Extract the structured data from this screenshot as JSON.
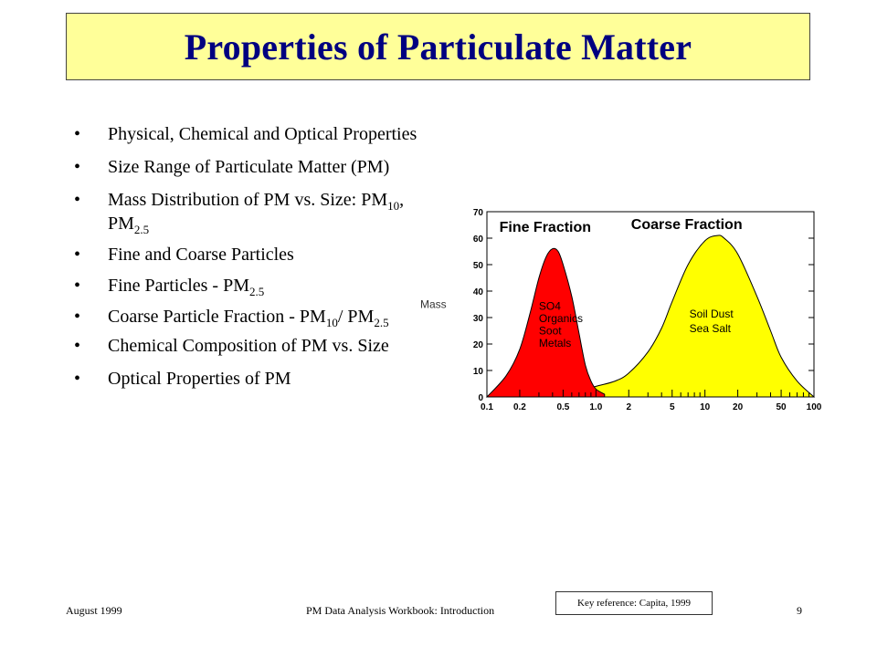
{
  "title": "Properties of Particulate Matter",
  "colors": {
    "title_bg": "#ffff99",
    "title_text": "#000080",
    "fine_fill": "#ff0000",
    "coarse_fill": "#ffff00"
  },
  "bullets": [
    {
      "parts": [
        {
          "t": "Physical, Chemical and Optical Properties"
        }
      ]
    },
    {
      "parts": [
        {
          "t": "Size Range of Particulate Matter (PM)"
        }
      ]
    },
    {
      "parts": [
        {
          "t": "Mass Distribution of PM vs. Size: PM"
        },
        {
          "sub": "10"
        },
        {
          "t": ", PM"
        },
        {
          "sub": "2.5"
        }
      ]
    },
    {
      "parts": [
        {
          "t": "Fine and Coarse Particles"
        }
      ]
    },
    {
      "parts": [
        {
          "t": "Fine Particles - PM"
        },
        {
          "sub": "2.5"
        }
      ]
    },
    {
      "parts": [
        {
          "t": "Coarse Particle Fraction - PM"
        },
        {
          "sub": "10"
        },
        {
          "t": "/ PM"
        },
        {
          "sub": "2.5"
        }
      ]
    },
    {
      "parts": [
        {
          "t": "Chemical Composition of  PM vs. Size"
        }
      ]
    },
    {
      "parts": [
        {
          "t": "Optical Properties of PM"
        }
      ]
    }
  ],
  "chart_data": {
    "type": "area",
    "ylabel": "Mass",
    "x_scale": "log",
    "xlim": [
      0.1,
      100
    ],
    "ylim": [
      0,
      70
    ],
    "x_ticks": [
      0.1,
      0.2,
      0.5,
      1.0,
      2,
      5,
      10,
      20,
      50,
      100
    ],
    "x_tick_labels": [
      "0.1",
      "0.2",
      "0.5",
      "1.0",
      "2",
      "5",
      "10",
      "20",
      "50",
      "100"
    ],
    "y_ticks": [
      0,
      10,
      20,
      30,
      40,
      50,
      60,
      70
    ],
    "y_tick_labels": [
      "0",
      "10",
      "20",
      "30",
      "40",
      "50",
      "60",
      "70"
    ],
    "series": [
      {
        "name": "Fine Fraction",
        "color": "#ff0000",
        "labels": [
          "SO4",
          "Organics",
          "Soot",
          "Metals"
        ],
        "x": [
          0.1,
          0.15,
          0.2,
          0.25,
          0.3,
          0.35,
          0.4,
          0.45,
          0.5,
          0.6,
          0.7,
          0.8,
          0.9,
          1.0,
          1.2
        ],
        "y": [
          0,
          8,
          18,
          32,
          45,
          53,
          56,
          55,
          50,
          38,
          24,
          12,
          6,
          3,
          1
        ]
      },
      {
        "name": "Coarse Fraction",
        "color": "#ffff00",
        "labels": [
          "Soil Dust",
          "Sea Salt"
        ],
        "x": [
          0.5,
          0.7,
          1.0,
          1.5,
          2,
          3,
          4,
          5,
          7,
          10,
          13,
          15,
          20,
          30,
          40,
          50,
          70,
          100
        ],
        "y": [
          0,
          2,
          4,
          6,
          9,
          17,
          26,
          36,
          50,
          59,
          61,
          60,
          54,
          38,
          25,
          15,
          6,
          0
        ]
      }
    ]
  },
  "footer": {
    "left": "August 1999",
    "center": "PM Data Analysis Workbook: Introduction",
    "page": "9",
    "key_reference": "Key reference: Capita, 1999"
  }
}
